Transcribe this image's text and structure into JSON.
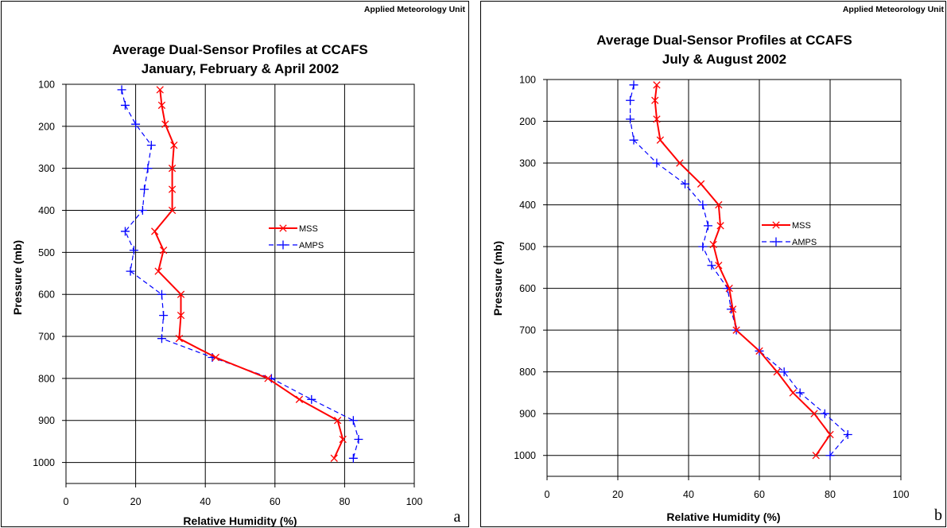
{
  "chart_data": [
    {
      "type": "line",
      "unit_label": "Applied Meteorology Unit",
      "title": "Average Dual-Sensor Profiles at CCAFS",
      "subtitle": "January, February & April 2002",
      "xlabel": "Relative Humidity (%)",
      "ylabel": "Pressure (mb)",
      "xlim": [
        0,
        100
      ],
      "ylim": [
        1050,
        100
      ],
      "y_inverted": true,
      "x_ticks": [
        "0",
        "20",
        "40",
        "60",
        "80",
        "100"
      ],
      "y_ticks": [
        "100",
        "200",
        "300",
        "400",
        "500",
        "600",
        "700",
        "800",
        "900",
        "1000"
      ],
      "grid": true,
      "legend_position": "right",
      "panel_letter": "a",
      "series": [
        {
          "name": "MSS",
          "color": "#ff0000",
          "marker": "x",
          "points": [
            [
              27,
              113
            ],
            [
              27.5,
              150
            ],
            [
              28.5,
              195
            ],
            [
              31,
              245
            ],
            [
              30.5,
              300
            ],
            [
              30.5,
              350
            ],
            [
              30.5,
              400
            ],
            [
              25.5,
              450
            ],
            [
              28,
              495
            ],
            [
              26.5,
              545
            ],
            [
              33,
              600
            ],
            [
              33,
              650
            ],
            [
              32.5,
              705
            ],
            [
              43,
              750
            ],
            [
              58,
              800
            ],
            [
              67,
              850
            ],
            [
              78,
              900
            ],
            [
              79.5,
              945
            ],
            [
              77,
              990
            ]
          ]
        },
        {
          "name": "AMPS",
          "color": "#0000ff",
          "marker": "+",
          "dashed": true,
          "points": [
            [
              16,
              113
            ],
            [
              17,
              150
            ],
            [
              20,
              195
            ],
            [
              24.5,
              245
            ],
            [
              23.5,
              300
            ],
            [
              22.5,
              350
            ],
            [
              22,
              400
            ],
            [
              17,
              450
            ],
            [
              19.5,
              495
            ],
            [
              18.5,
              545
            ],
            [
              27.5,
              600
            ],
            [
              28,
              650
            ],
            [
              27.5,
              705
            ],
            [
              42,
              750
            ],
            [
              59,
              800
            ],
            [
              70.5,
              850
            ],
            [
              82.5,
              900
            ],
            [
              84,
              945
            ],
            [
              82.5,
              990
            ]
          ]
        }
      ]
    },
    {
      "type": "line",
      "unit_label": "Applied Meteorology Unit",
      "title": "Average Dual-Sensor Profiles at CCAFS",
      "subtitle": "July & August 2002",
      "xlabel": "Relative Humidity (%)",
      "ylabel": "Pressure (mb)",
      "xlim": [
        0,
        100
      ],
      "ylim": [
        1050,
        100
      ],
      "y_inverted": true,
      "x_ticks": [
        "0",
        "20",
        "40",
        "60",
        "80",
        "100"
      ],
      "y_ticks": [
        "100",
        "200",
        "300",
        "400",
        "500",
        "600",
        "700",
        "800",
        "900",
        "1000"
      ],
      "grid": true,
      "legend_position": "right",
      "panel_letter": "b",
      "series": [
        {
          "name": "MSS",
          "color": "#ff0000",
          "marker": "x",
          "points": [
            [
              31,
              113
            ],
            [
              30.5,
              150
            ],
            [
              31,
              195
            ],
            [
              32,
              245
            ],
            [
              37.5,
              300
            ],
            [
              43.5,
              350
            ],
            [
              48.5,
              400
            ],
            [
              49,
              450
            ],
            [
              47,
              495
            ],
            [
              48.5,
              545
            ],
            [
              51.5,
              600
            ],
            [
              52.5,
              650
            ],
            [
              53.5,
              700
            ],
            [
              60,
              750
            ],
            [
              65,
              800
            ],
            [
              69.5,
              850
            ],
            [
              75.5,
              900
            ],
            [
              80,
              950
            ],
            [
              76,
              1000
            ]
          ]
        },
        {
          "name": "AMPS",
          "color": "#0000ff",
          "marker": "+",
          "dashed": true,
          "points": [
            [
              24.5,
              113
            ],
            [
              23.5,
              150
            ],
            [
              23.5,
              195
            ],
            [
              24.5,
              245
            ],
            [
              31,
              300
            ],
            [
              39,
              350
            ],
            [
              44,
              400
            ],
            [
              45.5,
              450
            ],
            [
              44,
              500
            ],
            [
              46.5,
              545
            ],
            [
              51,
              600
            ],
            [
              52,
              650
            ],
            [
              53.5,
              700
            ],
            [
              60,
              750
            ],
            [
              67,
              800
            ],
            [
              71.5,
              850
            ],
            [
              78.5,
              900
            ],
            [
              85,
              950
            ],
            [
              80,
              1000
            ]
          ]
        }
      ]
    }
  ]
}
